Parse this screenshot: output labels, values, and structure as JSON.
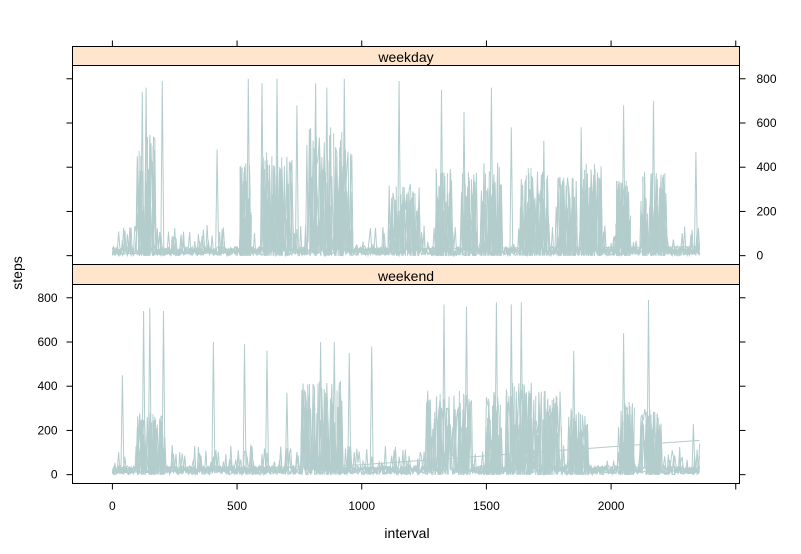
{
  "chart_data": {
    "type": "line",
    "xlabel": "interval",
    "ylabel": "steps",
    "xlim": [
      -160,
      2515
    ],
    "ylim": [
      -40,
      860
    ],
    "xticks": [
      0,
      500,
      1000,
      1500,
      2000
    ],
    "yticks": [
      0,
      200,
      400,
      600,
      800
    ],
    "line_color": "#b3cccc",
    "strip_color": "#ffe5cc",
    "panels": [
      {
        "name": "weekday",
        "peaks": [
          {
            "x": 120,
            "y": 740
          },
          {
            "x": 135,
            "y": 760
          },
          {
            "x": 200,
            "y": 790
          },
          {
            "x": 420,
            "y": 480
          },
          {
            "x": 545,
            "y": 800
          },
          {
            "x": 600,
            "y": 780
          },
          {
            "x": 660,
            "y": 800
          },
          {
            "x": 740,
            "y": 680
          },
          {
            "x": 815,
            "y": 780
          },
          {
            "x": 860,
            "y": 760
          },
          {
            "x": 930,
            "y": 800
          },
          {
            "x": 1150,
            "y": 790
          },
          {
            "x": 1320,
            "y": 750
          },
          {
            "x": 1410,
            "y": 650
          },
          {
            "x": 1520,
            "y": 760
          },
          {
            "x": 1600,
            "y": 580
          },
          {
            "x": 1730,
            "y": 520
          },
          {
            "x": 1880,
            "y": 580
          },
          {
            "x": 2050,
            "y": 680
          },
          {
            "x": 2170,
            "y": 700
          },
          {
            "x": 2340,
            "y": 470
          }
        ],
        "dense": [
          {
            "from": 100,
            "to": 170,
            "h": 550
          },
          {
            "from": 510,
            "to": 560,
            "h": 420
          },
          {
            "from": 600,
            "to": 720,
            "h": 470
          },
          {
            "from": 780,
            "to": 960,
            "h": 580
          },
          {
            "from": 1110,
            "to": 1230,
            "h": 330
          },
          {
            "from": 1300,
            "to": 1360,
            "h": 400
          },
          {
            "from": 1400,
            "to": 1460,
            "h": 380
          },
          {
            "from": 1480,
            "to": 1560,
            "h": 420
          },
          {
            "from": 1630,
            "to": 1750,
            "h": 400
          },
          {
            "from": 1780,
            "to": 1860,
            "h": 360
          },
          {
            "from": 1880,
            "to": 1960,
            "h": 420
          },
          {
            "from": 2020,
            "to": 2080,
            "h": 340
          },
          {
            "from": 2120,
            "to": 2220,
            "h": 380
          }
        ]
      },
      {
        "name": "weekend",
        "peaks": [
          {
            "x": 40,
            "y": 450
          },
          {
            "x": 125,
            "y": 740
          },
          {
            "x": 150,
            "y": 755
          },
          {
            "x": 205,
            "y": 740
          },
          {
            "x": 405,
            "y": 600
          },
          {
            "x": 530,
            "y": 590
          },
          {
            "x": 620,
            "y": 560
          },
          {
            "x": 700,
            "y": 370
          },
          {
            "x": 835,
            "y": 600
          },
          {
            "x": 890,
            "y": 600
          },
          {
            "x": 950,
            "y": 550
          },
          {
            "x": 1040,
            "y": 580
          },
          {
            "x": 1330,
            "y": 770
          },
          {
            "x": 1420,
            "y": 760
          },
          {
            "x": 1540,
            "y": 780
          },
          {
            "x": 1600,
            "y": 770
          },
          {
            "x": 1640,
            "y": 780
          },
          {
            "x": 1850,
            "y": 560
          },
          {
            "x": 2050,
            "y": 640
          },
          {
            "x": 2150,
            "y": 790
          },
          {
            "x": 2330,
            "y": 230
          }
        ],
        "dense": [
          {
            "from": 100,
            "to": 210,
            "h": 280
          },
          {
            "from": 760,
            "to": 920,
            "h": 420
          },
          {
            "from": 1260,
            "to": 1440,
            "h": 380
          },
          {
            "from": 1500,
            "to": 1560,
            "h": 380
          },
          {
            "from": 1580,
            "to": 1680,
            "h": 420
          },
          {
            "from": 1690,
            "to": 1800,
            "h": 380
          },
          {
            "from": 1830,
            "to": 1910,
            "h": 300
          },
          {
            "from": 2030,
            "to": 2090,
            "h": 330
          },
          {
            "from": 2120,
            "to": 2200,
            "h": 300
          }
        ]
      }
    ]
  }
}
